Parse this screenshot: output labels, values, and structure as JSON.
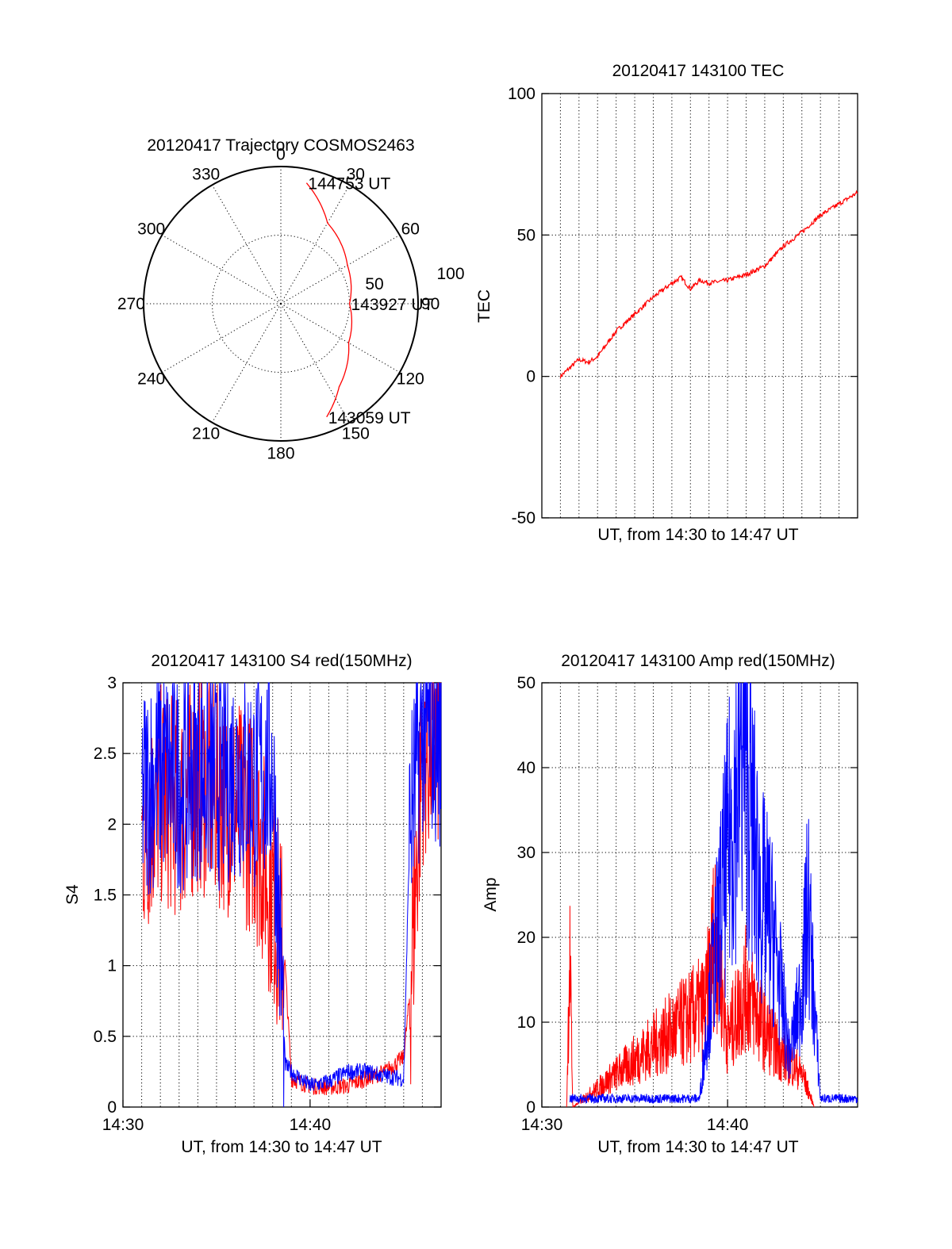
{
  "chart_data": [
    {
      "id": "trajectory",
      "type": "polar",
      "title": "20120417 Trajectory COSMOS2463",
      "azimuth_labels": [
        "0",
        "30",
        "60",
        "90",
        "120",
        "150",
        "180",
        "210",
        "240",
        "270",
        "300",
        "330"
      ],
      "radial_labels": [
        "50",
        "100"
      ],
      "rlim": [
        0,
        100
      ],
      "grid": true,
      "series": [
        {
          "color": "#ff0000",
          "points": [
            {
              "az": 12,
              "r": 90
            },
            {
              "az": 30,
              "r": 68
            },
            {
              "az": 60,
              "r": 56
            },
            {
              "az": 90,
              "r": 50
            },
            {
              "az": 120,
              "r": 57
            },
            {
              "az": 145,
              "r": 74
            },
            {
              "az": 158,
              "r": 89
            }
          ]
        }
      ],
      "annotations": [
        {
          "text": "144753 UT",
          "az": 12,
          "r": 90
        },
        {
          "text": "143927 UT",
          "az": 90,
          "r": 50
        },
        {
          "text": "143059 UT",
          "az": 158,
          "r": 89
        }
      ]
    },
    {
      "id": "tec",
      "type": "line",
      "title": "20120417 143100 TEC",
      "xlabel": "UT, from 14:30 to 14:47 UT",
      "ylabel": "TEC",
      "xlim": [
        "14:30",
        "14:47"
      ],
      "ylim": [
        -50,
        100
      ],
      "yticks": [
        -50,
        0,
        50,
        100
      ],
      "xticks": [],
      "grid": true,
      "series": [
        {
          "color": "#ff0000",
          "x": [
            "14:31:00",
            "14:32:00",
            "14:32:30",
            "14:33:00",
            "14:34:00",
            "14:35:00",
            "14:36:00",
            "14:37:00",
            "14:37:30",
            "14:38:00",
            "14:38:30",
            "14:39:00",
            "14:40:00",
            "14:41:00",
            "14:42:00",
            "14:43:00",
            "14:44:00",
            "14:45:00",
            "14:46:00",
            "14:47:00"
          ],
          "y": [
            0,
            6,
            5,
            7,
            16,
            22,
            28,
            33,
            35,
            31,
            34,
            33,
            34,
            36,
            39,
            46,
            51,
            57,
            61,
            65
          ]
        }
      ]
    },
    {
      "id": "s4",
      "type": "line",
      "title": "20120417 143100 S4 red(150MHz)",
      "xlabel": "UT, from 14:30 to 14:47 UT",
      "ylabel": "S4",
      "xlim": [
        "14:30",
        "14:47"
      ],
      "ylim": [
        0,
        3
      ],
      "yticks": [
        0,
        0.5,
        1,
        1.5,
        2,
        2.5,
        3
      ],
      "yticklabels": [
        "0",
        "0.5",
        "1",
        "1.5",
        "2",
        "2.5",
        "3"
      ],
      "xticks": [
        "14:30",
        "14:40"
      ],
      "grid": true,
      "series": [
        {
          "color": "#ff0000",
          "x": [
            "14:31",
            "14:32",
            "14:33",
            "14:34",
            "14:35",
            "14:36",
            "14:37",
            "14:38",
            "14:38:40",
            "14:39",
            "14:40",
            "14:41",
            "14:42",
            "14:43",
            "14:44",
            "14:45",
            "14:45:20",
            "14:46",
            "14:47"
          ],
          "y": [
            1.9,
            2.2,
            2.1,
            2.3,
            2.2,
            2.1,
            2.0,
            1.5,
            1.0,
            0.2,
            0.15,
            0.14,
            0.15,
            0.2,
            0.25,
            0.35,
            0.8,
            2.5,
            2.6
          ]
        },
        {
          "color": "#0000ff",
          "x": [
            "14:31",
            "14:32",
            "14:33",
            "14:34",
            "14:35",
            "14:36",
            "14:37",
            "14:38",
            "14:38:40",
            "14:39",
            "14:40",
            "14:41",
            "14:42",
            "14:43",
            "14:44",
            "14:45",
            "14:45:20",
            "14:46",
            "14:47"
          ],
          "y": [
            2.2,
            2.4,
            2.3,
            2.4,
            2.3,
            2.4,
            2.3,
            2.4,
            0.3,
            0.25,
            0.15,
            0.18,
            0.25,
            0.25,
            0.22,
            0.2,
            2.0,
            2.7,
            2.6
          ]
        }
      ]
    },
    {
      "id": "amp",
      "type": "line",
      "title": "20120417 143100 Amp red(150MHz)",
      "xlabel": "UT, from 14:30 to 14:47 UT",
      "ylabel": "Amp",
      "xlim": [
        "14:30",
        "14:47"
      ],
      "ylim": [
        0,
        50
      ],
      "yticks": [
        0,
        10,
        20,
        30,
        40,
        50
      ],
      "xticks": [
        "14:30",
        "14:40"
      ],
      "grid": true,
      "series": [
        {
          "color": "#ff0000",
          "x": [
            "14:31:20",
            "14:31:30",
            "14:31:40",
            "14:38:50",
            "14:39:20",
            "14:40:00",
            "14:41:00",
            "14:42:00",
            "14:43:00",
            "14:44:00",
            "14:44:40"
          ],
          "y": [
            0,
            18,
            0,
            12,
            21,
            8,
            14,
            9,
            6,
            4,
            0
          ]
        },
        {
          "color": "#0000ff",
          "x": [
            "14:31:30",
            "14:38:30",
            "14:39:00",
            "14:40:00",
            "14:40:50",
            "14:41:40",
            "14:42:30",
            "14:43:20",
            "14:44:00",
            "14:44:20",
            "14:44:40",
            "14:45:00",
            "14:47:00"
          ],
          "y": [
            1,
            1,
            12,
            30,
            44,
            26,
            20,
            6,
            14,
            24,
            12,
            1,
            1
          ]
        }
      ]
    }
  ]
}
